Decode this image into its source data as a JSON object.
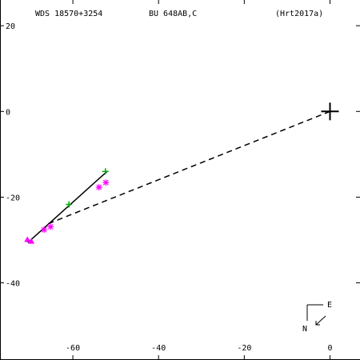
{
  "header": {
    "wds_id": "WDS 18570+3254",
    "discoverer": "BU  648AB,C",
    "reference": "(Hrt2017a)"
  },
  "compass": {
    "east_label": "E",
    "north_label": "N"
  },
  "colors": {
    "axes": "#000000",
    "green_marker": "#00aa00",
    "magenta_marker": "#ff00ff",
    "orbit_line": "#000000",
    "dashed_line": "#000000"
  },
  "chart_data": {
    "type": "scatter",
    "title": "",
    "xlabel": "",
    "ylabel": "",
    "xlim": [
      -77,
      7
    ],
    "ylim": [
      -58,
      26
    ],
    "x_ticks": [
      -60,
      -40,
      -20,
      0
    ],
    "y_ticks": [
      20,
      0,
      -20,
      -40
    ],
    "x_tick_labels": [
      "-60",
      "-40",
      "-20",
      "0"
    ],
    "y_tick_labels": [
      "20",
      "0",
      "-20",
      "-40"
    ],
    "grid": false,
    "primary_star": {
      "x": 0,
      "y": 0,
      "marker": "plus"
    },
    "fit_line": {
      "x": [
        -70.5,
        -51.9
      ],
      "y": [
        -30.6,
        -13.9
      ],
      "style": "solid"
    },
    "separation_line": {
      "x": [
        0,
        -66.0
      ],
      "y": [
        0,
        -26.3
      ],
      "style": "dashed"
    },
    "series": [
      {
        "marker": "plus",
        "color": "#00aa00",
        "points": [
          {
            "x": -52.4,
            "y": -14.0
          },
          {
            "x": -60.9,
            "y": -21.7
          }
        ]
      },
      {
        "marker": "asterisk",
        "color": "#ff00ff",
        "points": [
          {
            "x": -52.3,
            "y": -16.6
          },
          {
            "x": -53.9,
            "y": -17.7
          },
          {
            "x": -65.2,
            "y": -26.9
          },
          {
            "x": -66.7,
            "y": -27.6
          }
        ]
      },
      {
        "marker": "triangle",
        "color": "#ff00ff",
        "points": [
          {
            "x": -70.6,
            "y": -29.9
          },
          {
            "x": -69.7,
            "y": -30.3
          }
        ]
      }
    ]
  }
}
